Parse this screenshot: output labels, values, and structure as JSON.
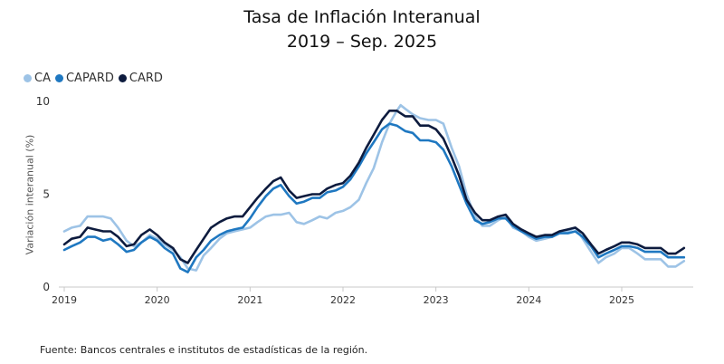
{
  "title": "Tasa de Inflación Interanual",
  "subtitle": "2019 – Sep. 2025",
  "footer": "Fuente: Bancos centrales e institutos de estadísticas de la región.",
  "colors": {
    "CA": "#9dc3e6",
    "CAPARD": "#1f78c1",
    "CARD": "#0d1b3e",
    "axis": "#c8c8c8"
  },
  "chart_data": {
    "type": "line",
    "title": "Tasa de Inflación Interanual",
    "subtitle": "2019 – Sep. 2025",
    "xlabel": "",
    "ylabel": "Variación interanual (%)",
    "ylim": [
      0,
      10
    ],
    "yticks": [
      "0",
      "5",
      "10"
    ],
    "xlim": [
      2019.0,
      2025.75
    ],
    "xticks": [
      "2019",
      "2020",
      "2021",
      "2022",
      "2023",
      "2024",
      "2025"
    ],
    "legend_position": "top-left",
    "grid": false,
    "series": [
      {
        "name": "CA",
        "color": "#9dc3e6",
        "points": [
          [
            2019.0,
            3.0
          ],
          [
            2019.08,
            3.2
          ],
          [
            2019.17,
            3.3
          ],
          [
            2019.25,
            3.8
          ],
          [
            2019.42,
            3.8
          ],
          [
            2019.5,
            3.7
          ],
          [
            2019.58,
            3.2
          ],
          [
            2019.67,
            2.5
          ],
          [
            2019.75,
            2.2
          ],
          [
            2019.83,
            2.4
          ],
          [
            2019.92,
            2.8
          ],
          [
            2020.0,
            2.6
          ],
          [
            2020.08,
            2.3
          ],
          [
            2020.17,
            2.0
          ],
          [
            2020.25,
            1.6
          ],
          [
            2020.33,
            1.0
          ],
          [
            2020.42,
            0.9
          ],
          [
            2020.5,
            1.7
          ],
          [
            2020.58,
            2.1
          ],
          [
            2020.67,
            2.6
          ],
          [
            2020.75,
            2.9
          ],
          [
            2020.83,
            3.0
          ],
          [
            2020.92,
            3.1
          ],
          [
            2021.0,
            3.2
          ],
          [
            2021.08,
            3.5
          ],
          [
            2021.17,
            3.8
          ],
          [
            2021.25,
            3.9
          ],
          [
            2021.33,
            3.9
          ],
          [
            2021.42,
            4.0
          ],
          [
            2021.5,
            3.5
          ],
          [
            2021.58,
            3.4
          ],
          [
            2021.67,
            3.6
          ],
          [
            2021.75,
            3.8
          ],
          [
            2021.83,
            3.7
          ],
          [
            2021.92,
            4.0
          ],
          [
            2022.0,
            4.1
          ],
          [
            2022.08,
            4.3
          ],
          [
            2022.17,
            4.7
          ],
          [
            2022.25,
            5.6
          ],
          [
            2022.33,
            6.4
          ],
          [
            2022.42,
            7.8
          ],
          [
            2022.5,
            8.8
          ],
          [
            2022.58,
            9.5
          ],
          [
            2022.62,
            9.8
          ],
          [
            2022.67,
            9.6
          ],
          [
            2022.75,
            9.3
          ],
          [
            2022.83,
            9.1
          ],
          [
            2022.92,
            9.0
          ],
          [
            2023.0,
            9.0
          ],
          [
            2023.08,
            8.8
          ],
          [
            2023.17,
            7.5
          ],
          [
            2023.25,
            6.5
          ],
          [
            2023.33,
            5.0
          ],
          [
            2023.42,
            3.8
          ],
          [
            2023.5,
            3.3
          ],
          [
            2023.58,
            3.3
          ],
          [
            2023.67,
            3.6
          ],
          [
            2023.75,
            3.8
          ],
          [
            2023.83,
            3.2
          ],
          [
            2023.92,
            3.0
          ],
          [
            2024.0,
            2.7
          ],
          [
            2024.08,
            2.5
          ],
          [
            2024.17,
            2.6
          ],
          [
            2024.25,
            2.7
          ],
          [
            2024.33,
            2.9
          ],
          [
            2024.42,
            3.0
          ],
          [
            2024.5,
            3.2
          ],
          [
            2024.58,
            2.6
          ],
          [
            2024.67,
            1.9
          ],
          [
            2024.75,
            1.3
          ],
          [
            2024.83,
            1.6
          ],
          [
            2024.92,
            1.8
          ],
          [
            2025.0,
            2.1
          ],
          [
            2025.08,
            2.1
          ],
          [
            2025.17,
            1.8
          ],
          [
            2025.25,
            1.5
          ],
          [
            2025.33,
            1.5
          ],
          [
            2025.42,
            1.5
          ],
          [
            2025.5,
            1.1
          ],
          [
            2025.58,
            1.1
          ],
          [
            2025.67,
            1.4
          ]
        ]
      },
      {
        "name": "CAPARD",
        "color": "#1f78c1",
        "points": [
          [
            2019.0,
            2.0
          ],
          [
            2019.08,
            2.2
          ],
          [
            2019.17,
            2.4
          ],
          [
            2019.25,
            2.7
          ],
          [
            2019.33,
            2.7
          ],
          [
            2019.42,
            2.5
          ],
          [
            2019.5,
            2.6
          ],
          [
            2019.58,
            2.3
          ],
          [
            2019.67,
            1.9
          ],
          [
            2019.75,
            2.0
          ],
          [
            2019.83,
            2.4
          ],
          [
            2019.92,
            2.7
          ],
          [
            2020.0,
            2.5
          ],
          [
            2020.08,
            2.1
          ],
          [
            2020.17,
            1.8
          ],
          [
            2020.25,
            1.0
          ],
          [
            2020.33,
            0.8
          ],
          [
            2020.42,
            1.6
          ],
          [
            2020.5,
            2.0
          ],
          [
            2020.58,
            2.5
          ],
          [
            2020.67,
            2.8
          ],
          [
            2020.75,
            3.0
          ],
          [
            2020.83,
            3.1
          ],
          [
            2020.92,
            3.2
          ],
          [
            2021.0,
            3.7
          ],
          [
            2021.08,
            4.3
          ],
          [
            2021.17,
            4.9
          ],
          [
            2021.25,
            5.3
          ],
          [
            2021.33,
            5.5
          ],
          [
            2021.42,
            4.9
          ],
          [
            2021.5,
            4.5
          ],
          [
            2021.58,
            4.6
          ],
          [
            2021.67,
            4.8
          ],
          [
            2021.75,
            4.8
          ],
          [
            2021.83,
            5.1
          ],
          [
            2021.92,
            5.2
          ],
          [
            2022.0,
            5.4
          ],
          [
            2022.08,
            5.8
          ],
          [
            2022.17,
            6.5
          ],
          [
            2022.25,
            7.2
          ],
          [
            2022.33,
            7.8
          ],
          [
            2022.42,
            8.5
          ],
          [
            2022.5,
            8.8
          ],
          [
            2022.58,
            8.7
          ],
          [
            2022.67,
            8.4
          ],
          [
            2022.75,
            8.3
          ],
          [
            2022.83,
            7.9
          ],
          [
            2022.92,
            7.9
          ],
          [
            2023.0,
            7.8
          ],
          [
            2023.08,
            7.4
          ],
          [
            2023.17,
            6.5
          ],
          [
            2023.25,
            5.5
          ],
          [
            2023.33,
            4.5
          ],
          [
            2023.42,
            3.6
          ],
          [
            2023.5,
            3.4
          ],
          [
            2023.58,
            3.5
          ],
          [
            2023.67,
            3.7
          ],
          [
            2023.75,
            3.7
          ],
          [
            2023.83,
            3.3
          ],
          [
            2023.92,
            3.0
          ],
          [
            2024.0,
            2.8
          ],
          [
            2024.08,
            2.6
          ],
          [
            2024.17,
            2.7
          ],
          [
            2024.25,
            2.7
          ],
          [
            2024.33,
            2.9
          ],
          [
            2024.42,
            2.9
          ],
          [
            2024.5,
            3.0
          ],
          [
            2024.58,
            2.7
          ],
          [
            2024.67,
            2.2
          ],
          [
            2024.75,
            1.6
          ],
          [
            2024.83,
            1.8
          ],
          [
            2024.92,
            2.0
          ],
          [
            2025.0,
            2.2
          ],
          [
            2025.08,
            2.2
          ],
          [
            2025.17,
            2.1
          ],
          [
            2025.25,
            1.9
          ],
          [
            2025.33,
            1.9
          ],
          [
            2025.42,
            1.9
          ],
          [
            2025.5,
            1.6
          ],
          [
            2025.58,
            1.6
          ],
          [
            2025.67,
            1.6
          ]
        ]
      },
      {
        "name": "CARD",
        "color": "#0d1b3e",
        "points": [
          [
            2019.0,
            2.3
          ],
          [
            2019.08,
            2.6
          ],
          [
            2019.17,
            2.7
          ],
          [
            2019.25,
            3.2
          ],
          [
            2019.33,
            3.1
          ],
          [
            2019.42,
            3.0
          ],
          [
            2019.5,
            3.0
          ],
          [
            2019.58,
            2.7
          ],
          [
            2019.67,
            2.2
          ],
          [
            2019.75,
            2.3
          ],
          [
            2019.83,
            2.8
          ],
          [
            2019.92,
            3.1
          ],
          [
            2020.0,
            2.8
          ],
          [
            2020.08,
            2.4
          ],
          [
            2020.17,
            2.1
          ],
          [
            2020.25,
            1.5
          ],
          [
            2020.33,
            1.3
          ],
          [
            2020.42,
            2.0
          ],
          [
            2020.5,
            2.6
          ],
          [
            2020.58,
            3.2
          ],
          [
            2020.67,
            3.5
          ],
          [
            2020.75,
            3.7
          ],
          [
            2020.83,
            3.8
          ],
          [
            2020.92,
            3.8
          ],
          [
            2021.0,
            4.3
          ],
          [
            2021.08,
            4.8
          ],
          [
            2021.17,
            5.3
          ],
          [
            2021.25,
            5.7
          ],
          [
            2021.33,
            5.9
          ],
          [
            2021.42,
            5.2
          ],
          [
            2021.5,
            4.8
          ],
          [
            2021.58,
            4.9
          ],
          [
            2021.67,
            5.0
          ],
          [
            2021.75,
            5.0
          ],
          [
            2021.83,
            5.3
          ],
          [
            2021.92,
            5.5
          ],
          [
            2022.0,
            5.6
          ],
          [
            2022.08,
            6.0
          ],
          [
            2022.17,
            6.7
          ],
          [
            2022.25,
            7.5
          ],
          [
            2022.33,
            8.2
          ],
          [
            2022.42,
            9.0
          ],
          [
            2022.5,
            9.5
          ],
          [
            2022.58,
            9.5
          ],
          [
            2022.67,
            9.2
          ],
          [
            2022.75,
            9.2
          ],
          [
            2022.83,
            8.7
          ],
          [
            2022.92,
            8.7
          ],
          [
            2023.0,
            8.5
          ],
          [
            2023.08,
            8.0
          ],
          [
            2023.17,
            7.0
          ],
          [
            2023.25,
            6.0
          ],
          [
            2023.33,
            4.7
          ],
          [
            2023.42,
            4.0
          ],
          [
            2023.5,
            3.6
          ],
          [
            2023.58,
            3.6
          ],
          [
            2023.67,
            3.8
          ],
          [
            2023.75,
            3.9
          ],
          [
            2023.83,
            3.4
          ],
          [
            2023.92,
            3.1
          ],
          [
            2024.0,
            2.9
          ],
          [
            2024.08,
            2.7
          ],
          [
            2024.17,
            2.8
          ],
          [
            2024.25,
            2.8
          ],
          [
            2024.33,
            3.0
          ],
          [
            2024.42,
            3.1
          ],
          [
            2024.5,
            3.2
          ],
          [
            2024.58,
            2.9
          ],
          [
            2024.67,
            2.3
          ],
          [
            2024.75,
            1.8
          ],
          [
            2024.83,
            2.0
          ],
          [
            2024.92,
            2.2
          ],
          [
            2025.0,
            2.4
          ],
          [
            2025.08,
            2.4
          ],
          [
            2025.17,
            2.3
          ],
          [
            2025.25,
            2.1
          ],
          [
            2025.33,
            2.1
          ],
          [
            2025.42,
            2.1
          ],
          [
            2025.5,
            1.8
          ],
          [
            2025.58,
            1.8
          ],
          [
            2025.67,
            2.1
          ]
        ]
      }
    ]
  }
}
